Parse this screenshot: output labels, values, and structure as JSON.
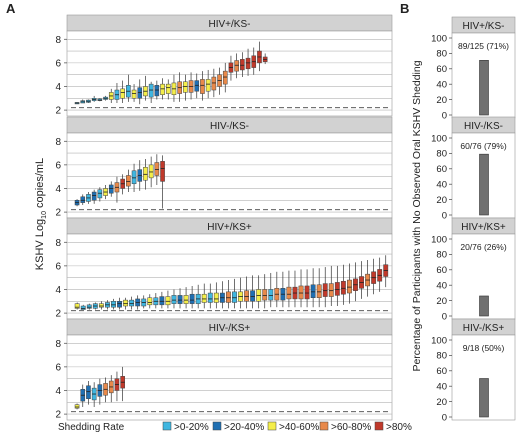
{
  "figure": {
    "panel_a_label": "A",
    "panel_b_label": "B",
    "y_label_a": "KSHV Log",
    "y_label_a_sub": "10",
    "y_label_a_tail": " copies/mL",
    "y_label_b": "Percentage of Participants with No Observed Oral KSHV Shedding",
    "legend_title": "Shedding Rate",
    "legend": [
      {
        "label": ">0-20%",
        "color": "#3fb6e0"
      },
      {
        "label": ">20-40%",
        "color": "#1f6fb2"
      },
      {
        "label": ">40-60%",
        "color": "#f4ee4a"
      },
      {
        "label": ">60-80%",
        "color": "#e8894a"
      },
      {
        "label": ">80%",
        "color": "#c0392b"
      }
    ],
    "colors": {
      "header_bg": "#d2d2d2",
      "bar_gray": "#707070",
      "grid": "#b5b5b5",
      "dash": "#444444"
    }
  },
  "chart_data": [
    {
      "type": "box",
      "panel": "A",
      "title": "HIV+/KS-",
      "ylim": [
        1.5,
        8.7
      ],
      "yticks": [
        2,
        4,
        6,
        8
      ],
      "limit_line": 2.2,
      "boxes": [
        {
          "rate": 1,
          "med": 2.6,
          "q1": 2.55,
          "q3": 2.65,
          "lo": 2.55,
          "hi": 2.65
        },
        {
          "rate": 1,
          "med": 2.7,
          "q1": 2.6,
          "q3": 2.8,
          "lo": 2.6,
          "hi": 2.9
        },
        {
          "rate": 1,
          "med": 2.75,
          "q1": 2.65,
          "q3": 2.85,
          "lo": 2.6,
          "hi": 2.9
        },
        {
          "rate": 1,
          "med": 2.9,
          "q1": 2.8,
          "q3": 3.0,
          "lo": 2.7,
          "hi": 3.2
        },
        {
          "rate": 1,
          "med": 2.85,
          "q1": 2.8,
          "q3": 2.95,
          "lo": 2.75,
          "hi": 3.0
        },
        {
          "rate": 1,
          "med": 3.0,
          "q1": 2.9,
          "q3": 3.1,
          "lo": 2.8,
          "hi": 3.2
        },
        {
          "rate": 3,
          "med": 3.2,
          "q1": 2.9,
          "q3": 3.5,
          "lo": 2.6,
          "hi": 3.8
        },
        {
          "rate": 1,
          "med": 3.3,
          "q1": 2.9,
          "q3": 3.7,
          "lo": 2.6,
          "hi": 4.3
        },
        {
          "rate": 3,
          "med": 3.5,
          "q1": 3.0,
          "q3": 3.8,
          "lo": 2.6,
          "hi": 4.5
        },
        {
          "rate": 1,
          "med": 3.6,
          "q1": 3.1,
          "q3": 4.1,
          "lo": 2.7,
          "hi": 5.0
        },
        {
          "rate": 3,
          "med": 3.4,
          "q1": 3.0,
          "q3": 3.7,
          "lo": 2.7,
          "hi": 4.2
        },
        {
          "rate": 2,
          "med": 3.5,
          "q1": 3.0,
          "q3": 3.9,
          "lo": 2.5,
          "hi": 4.6
        },
        {
          "rate": 3,
          "med": 3.6,
          "q1": 3.2,
          "q3": 4.0,
          "lo": 2.8,
          "hi": 4.9
        },
        {
          "rate": 1,
          "med": 3.7,
          "q1": 3.1,
          "q3": 4.2,
          "lo": 2.6,
          "hi": 4.4
        },
        {
          "rate": 2,
          "med": 3.7,
          "q1": 3.2,
          "q3": 4.1,
          "lo": 2.9,
          "hi": 4.5
        },
        {
          "rate": 3,
          "med": 3.8,
          "q1": 3.3,
          "q3": 4.2,
          "lo": 2.9,
          "hi": 4.7
        },
        {
          "rate": 3,
          "med": 3.9,
          "q1": 3.4,
          "q3": 4.2,
          "lo": 2.9,
          "hi": 4.6
        },
        {
          "rate": 3,
          "med": 3.8,
          "q1": 3.3,
          "q3": 4.3,
          "lo": 2.7,
          "hi": 5.0
        },
        {
          "rate": 4,
          "med": 3.9,
          "q1": 3.4,
          "q3": 4.4,
          "lo": 2.7,
          "hi": 5.2
        },
        {
          "rate": 3,
          "med": 4.0,
          "q1": 3.5,
          "q3": 4.4,
          "lo": 2.8,
          "hi": 5.0
        },
        {
          "rate": 4,
          "med": 4.0,
          "q1": 3.5,
          "q3": 4.5,
          "lo": 2.9,
          "hi": 5.2
        },
        {
          "rate": 2,
          "med": 4.1,
          "q1": 3.6,
          "q3": 4.5,
          "lo": 3.0,
          "hi": 5.1
        },
        {
          "rate": 4,
          "med": 4.1,
          "q1": 3.4,
          "q3": 4.6,
          "lo": 2.8,
          "hi": 5.3
        },
        {
          "rate": 3,
          "med": 4.2,
          "q1": 3.6,
          "q3": 4.6,
          "lo": 3.0,
          "hi": 5.4
        },
        {
          "rate": 4,
          "med": 4.3,
          "q1": 3.7,
          "q3": 4.8,
          "lo": 3.1,
          "hi": 5.5
        },
        {
          "rate": 4,
          "med": 4.5,
          "q1": 4.0,
          "q3": 5.0,
          "lo": 3.3,
          "hi": 5.6
        },
        {
          "rate": 4,
          "med": 4.8,
          "q1": 4.2,
          "q3": 5.3,
          "lo": 3.5,
          "hi": 6.0
        },
        {
          "rate": 5,
          "med": 5.6,
          "q1": 5.2,
          "q3": 6.0,
          "lo": 4.5,
          "hi": 6.6
        },
        {
          "rate": 4,
          "med": 5.8,
          "q1": 5.3,
          "q3": 6.2,
          "lo": 4.7,
          "hi": 6.8
        },
        {
          "rate": 5,
          "med": 5.8,
          "q1": 5.4,
          "q3": 6.3,
          "lo": 4.8,
          "hi": 6.9
        },
        {
          "rate": 5,
          "med": 6.0,
          "q1": 5.5,
          "q3": 6.4,
          "lo": 4.9,
          "hi": 7.2
        },
        {
          "rate": 5,
          "med": 6.1,
          "q1": 5.6,
          "q3": 6.6,
          "lo": 5.0,
          "hi": 7.3
        },
        {
          "rate": 5,
          "med": 6.5,
          "q1": 6.0,
          "q3": 7.0,
          "lo": 5.3,
          "hi": 7.8
        },
        {
          "rate": 5,
          "med": 6.3,
          "q1": 6.1,
          "q3": 6.5,
          "lo": 5.9,
          "hi": 6.8
        }
      ]
    },
    {
      "type": "box",
      "panel": "A",
      "title": "HIV-/KS-",
      "ylim": [
        1.5,
        8.7
      ],
      "yticks": [
        2,
        4,
        6,
        8
      ],
      "limit_line": 2.2,
      "boxes": [
        {
          "rate": 2,
          "med": 2.8,
          "q1": 2.6,
          "q3": 3.0,
          "lo": 2.5,
          "hi": 3.1
        },
        {
          "rate": 2,
          "med": 3.0,
          "q1": 2.8,
          "q3": 3.3,
          "lo": 2.6,
          "hi": 3.5
        },
        {
          "rate": 1,
          "med": 3.2,
          "q1": 2.9,
          "q3": 3.5,
          "lo": 2.7,
          "hi": 3.7
        },
        {
          "rate": 2,
          "med": 3.4,
          "q1": 3.0,
          "q3": 3.7,
          "lo": 2.7,
          "hi": 3.9
        },
        {
          "rate": 1,
          "med": 3.6,
          "q1": 3.2,
          "q3": 3.9,
          "lo": 2.9,
          "hi": 4.1
        },
        {
          "rate": 3,
          "med": 3.7,
          "q1": 3.4,
          "q3": 4.0,
          "lo": 3.1,
          "hi": 4.3
        },
        {
          "rate": 2,
          "med": 4.0,
          "q1": 3.6,
          "q3": 4.3,
          "lo": 3.3,
          "hi": 4.6
        },
        {
          "rate": 4,
          "med": 4.1,
          "q1": 3.7,
          "q3": 4.5,
          "lo": 2.8,
          "hi": 5.0
        },
        {
          "rate": 5,
          "med": 4.4,
          "q1": 4.0,
          "q3": 4.8,
          "lo": 3.5,
          "hi": 5.2
        },
        {
          "rate": 4,
          "med": 4.6,
          "q1": 4.2,
          "q3": 5.1,
          "lo": 3.7,
          "hi": 5.6
        },
        {
          "rate": 1,
          "med": 4.9,
          "q1": 4.4,
          "q3": 5.5,
          "lo": 3.7,
          "hi": 6.1
        },
        {
          "rate": 2,
          "med": 5.1,
          "q1": 4.6,
          "q3": 5.6,
          "lo": 3.8,
          "hi": 6.4
        },
        {
          "rate": 3,
          "med": 5.2,
          "q1": 4.7,
          "q3": 5.8,
          "lo": 3.9,
          "hi": 6.5
        },
        {
          "rate": 3,
          "med": 5.4,
          "q1": 4.9,
          "q3": 6.0,
          "lo": 4.1,
          "hi": 6.7
        },
        {
          "rate": 4,
          "med": 5.6,
          "q1": 5.1,
          "q3": 6.2,
          "lo": 4.3,
          "hi": 6.9
        },
        {
          "rate": 5,
          "med": 5.7,
          "q1": 4.6,
          "q3": 6.3,
          "lo": 2.3,
          "hi": 6.8
        }
      ]
    },
    {
      "type": "box",
      "panel": "A",
      "title": "HIV+/KS+",
      "ylim": [
        1.5,
        8.7
      ],
      "yticks": [
        2,
        4,
        6,
        8
      ],
      "limit_line": 2.2,
      "boxes": [
        {
          "rate": 3,
          "med": 2.5,
          "q1": 2.4,
          "q3": 2.8,
          "lo": 2.3,
          "hi": 2.9
        },
        {
          "rate": 1,
          "med": 2.4,
          "q1": 2.3,
          "q3": 2.6,
          "lo": 2.3,
          "hi": 2.7
        },
        {
          "rate": 1,
          "med": 2.5,
          "q1": 2.4,
          "q3": 2.7,
          "lo": 2.3,
          "hi": 2.8
        },
        {
          "rate": 1,
          "med": 2.6,
          "q1": 2.4,
          "q3": 2.8,
          "lo": 2.3,
          "hi": 2.9
        },
        {
          "rate": 3,
          "med": 2.6,
          "q1": 2.5,
          "q3": 2.8,
          "lo": 2.3,
          "hi": 3.0
        },
        {
          "rate": 1,
          "med": 2.7,
          "q1": 2.5,
          "q3": 2.9,
          "lo": 2.3,
          "hi": 3.1
        },
        {
          "rate": 1,
          "med": 2.7,
          "q1": 2.5,
          "q3": 3.0,
          "lo": 2.3,
          "hi": 3.2
        },
        {
          "rate": 2,
          "med": 2.8,
          "q1": 2.5,
          "q3": 3.0,
          "lo": 2.3,
          "hi": 3.3
        },
        {
          "rate": 3,
          "med": 2.8,
          "q1": 2.6,
          "q3": 3.1,
          "lo": 2.3,
          "hi": 3.3
        },
        {
          "rate": 1,
          "med": 2.8,
          "q1": 2.6,
          "q3": 3.1,
          "lo": 2.3,
          "hi": 3.4
        },
        {
          "rate": 2,
          "med": 2.9,
          "q1": 2.6,
          "q3": 3.2,
          "lo": 2.3,
          "hi": 3.5
        },
        {
          "rate": 1,
          "med": 2.9,
          "q1": 2.6,
          "q3": 3.2,
          "lo": 2.4,
          "hi": 3.5
        },
        {
          "rate": 3,
          "med": 2.9,
          "q1": 2.7,
          "q3": 3.3,
          "lo": 2.4,
          "hi": 3.6
        },
        {
          "rate": 1,
          "med": 3.0,
          "q1": 2.7,
          "q3": 3.3,
          "lo": 2.4,
          "hi": 3.7
        },
        {
          "rate": 2,
          "med": 3.0,
          "q1": 2.7,
          "q3": 3.4,
          "lo": 2.4,
          "hi": 3.8
        },
        {
          "rate": 3,
          "med": 3.0,
          "q1": 2.7,
          "q3": 3.4,
          "lo": 2.4,
          "hi": 3.9
        },
        {
          "rate": 1,
          "med": 3.1,
          "q1": 2.8,
          "q3": 3.5,
          "lo": 2.4,
          "hi": 4.0
        },
        {
          "rate": 2,
          "med": 3.1,
          "q1": 2.8,
          "q3": 3.5,
          "lo": 2.4,
          "hi": 4.1
        },
        {
          "rate": 3,
          "med": 3.1,
          "q1": 2.8,
          "q3": 3.5,
          "lo": 2.4,
          "hi": 4.2
        },
        {
          "rate": 2,
          "med": 3.1,
          "q1": 2.8,
          "q3": 3.6,
          "lo": 2.4,
          "hi": 4.3
        },
        {
          "rate": 1,
          "med": 3.2,
          "q1": 2.8,
          "q3": 3.6,
          "lo": 2.4,
          "hi": 4.4
        },
        {
          "rate": 3,
          "med": 3.2,
          "q1": 2.9,
          "q3": 3.6,
          "lo": 2.4,
          "hi": 4.5
        },
        {
          "rate": 1,
          "med": 3.2,
          "q1": 2.9,
          "q3": 3.7,
          "lo": 2.4,
          "hi": 4.5
        },
        {
          "rate": 3,
          "med": 3.2,
          "q1": 2.9,
          "q3": 3.7,
          "lo": 2.4,
          "hi": 4.6
        },
        {
          "rate": 2,
          "med": 3.3,
          "q1": 2.9,
          "q3": 3.7,
          "lo": 2.4,
          "hi": 4.7
        },
        {
          "rate": 4,
          "med": 3.3,
          "q1": 2.9,
          "q3": 3.8,
          "lo": 2.4,
          "hi": 4.8
        },
        {
          "rate": 1,
          "med": 3.3,
          "q1": 2.9,
          "q3": 3.8,
          "lo": 2.4,
          "hi": 4.9
        },
        {
          "rate": 3,
          "med": 3.4,
          "q1": 3.0,
          "q3": 3.8,
          "lo": 2.4,
          "hi": 5.0
        },
        {
          "rate": 4,
          "med": 3.4,
          "q1": 3.0,
          "q3": 3.9,
          "lo": 2.4,
          "hi": 5.1
        },
        {
          "rate": 2,
          "med": 3.4,
          "q1": 3.0,
          "q3": 3.9,
          "lo": 2.4,
          "hi": 5.2
        },
        {
          "rate": 3,
          "med": 3.5,
          "q1": 3.0,
          "q3": 4.0,
          "lo": 2.4,
          "hi": 5.2
        },
        {
          "rate": 4,
          "med": 3.5,
          "q1": 3.1,
          "q3": 4.0,
          "lo": 2.4,
          "hi": 5.3
        },
        {
          "rate": 1,
          "med": 3.5,
          "q1": 3.1,
          "q3": 4.0,
          "lo": 2.5,
          "hi": 5.4
        },
        {
          "rate": 4,
          "med": 3.6,
          "q1": 3.1,
          "q3": 4.1,
          "lo": 2.5,
          "hi": 5.5
        },
        {
          "rate": 2,
          "med": 3.6,
          "q1": 3.1,
          "q3": 4.1,
          "lo": 2.5,
          "hi": 5.5
        },
        {
          "rate": 4,
          "med": 3.6,
          "q1": 3.2,
          "q3": 4.2,
          "lo": 2.5,
          "hi": 5.6
        },
        {
          "rate": 5,
          "med": 3.7,
          "q1": 3.2,
          "q3": 4.2,
          "lo": 2.5,
          "hi": 5.6
        },
        {
          "rate": 4,
          "med": 3.7,
          "q1": 3.2,
          "q3": 4.3,
          "lo": 2.5,
          "hi": 5.7
        },
        {
          "rate": 5,
          "med": 3.7,
          "q1": 3.2,
          "q3": 4.3,
          "lo": 2.5,
          "hi": 5.7
        },
        {
          "rate": 2,
          "med": 3.8,
          "q1": 3.3,
          "q3": 4.4,
          "lo": 2.5,
          "hi": 5.8
        },
        {
          "rate": 4,
          "med": 3.8,
          "q1": 3.3,
          "q3": 4.4,
          "lo": 2.5,
          "hi": 5.8
        },
        {
          "rate": 5,
          "med": 3.9,
          "q1": 3.4,
          "q3": 4.5,
          "lo": 2.5,
          "hi": 5.9
        },
        {
          "rate": 4,
          "med": 3.9,
          "q1": 3.4,
          "q3": 4.5,
          "lo": 2.6,
          "hi": 6.0
        },
        {
          "rate": 5,
          "med": 4.0,
          "q1": 3.5,
          "q3": 4.6,
          "lo": 2.6,
          "hi": 6.0
        },
        {
          "rate": 5,
          "med": 4.1,
          "q1": 3.6,
          "q3": 4.7,
          "lo": 2.7,
          "hi": 6.1
        },
        {
          "rate": 4,
          "med": 4.2,
          "q1": 3.7,
          "q3": 4.8,
          "lo": 2.8,
          "hi": 6.2
        },
        {
          "rate": 5,
          "med": 4.4,
          "q1": 3.9,
          "q3": 4.9,
          "lo": 3.0,
          "hi": 6.3
        },
        {
          "rate": 5,
          "med": 4.6,
          "q1": 4.1,
          "q3": 5.1,
          "lo": 3.2,
          "hi": 6.4
        },
        {
          "rate": 4,
          "med": 4.8,
          "q1": 4.3,
          "q3": 5.3,
          "lo": 3.4,
          "hi": 6.5
        },
        {
          "rate": 5,
          "med": 5.0,
          "q1": 4.5,
          "q3": 5.5,
          "lo": 3.6,
          "hi": 6.6
        },
        {
          "rate": 5,
          "med": 5.2,
          "q1": 4.7,
          "q3": 5.7,
          "lo": 3.8,
          "hi": 6.7
        },
        {
          "rate": 5,
          "med": 5.6,
          "q1": 5.1,
          "q3": 6.1,
          "lo": 4.2,
          "hi": 6.9
        }
      ]
    },
    {
      "type": "box",
      "panel": "A",
      "title": "HIV-/KS+",
      "ylim": [
        1.5,
        8.7
      ],
      "yticks": [
        2,
        4,
        6,
        8
      ],
      "limit_line": 2.2,
      "boxes": [
        {
          "rate": 3,
          "med": 2.6,
          "q1": 2.5,
          "q3": 2.8,
          "lo": 2.4,
          "hi": 2.9
        },
        {
          "rate": 2,
          "med": 3.6,
          "q1": 3.1,
          "q3": 4.1,
          "lo": 2.6,
          "hi": 4.5
        },
        {
          "rate": 2,
          "med": 3.9,
          "q1": 3.3,
          "q3": 4.4,
          "lo": 2.8,
          "hi": 4.8
        },
        {
          "rate": 1,
          "med": 3.7,
          "q1": 3.2,
          "q3": 4.2,
          "lo": 2.6,
          "hi": 4.7
        },
        {
          "rate": 2,
          "med": 4.0,
          "q1": 3.5,
          "q3": 4.5,
          "lo": 2.8,
          "hi": 5.0
        },
        {
          "rate": 4,
          "med": 4.1,
          "q1": 3.6,
          "q3": 4.6,
          "lo": 3.0,
          "hi": 5.1
        },
        {
          "rate": 4,
          "med": 4.3,
          "q1": 3.8,
          "q3": 4.8,
          "lo": 3.0,
          "hi": 5.3
        },
        {
          "rate": 5,
          "med": 4.5,
          "q1": 4.0,
          "q3": 5.0,
          "lo": 3.1,
          "hi": 5.6
        },
        {
          "rate": 5,
          "med": 4.7,
          "q1": 4.2,
          "q3": 5.2,
          "lo": 3.1,
          "hi": 6.0
        }
      ]
    },
    {
      "type": "bar",
      "panel": "B",
      "title": "HIV+/KS-",
      "ylim": [
        0,
        100
      ],
      "yticks": [
        0,
        20,
        40,
        60,
        80,
        100
      ],
      "values": [
        71
      ],
      "annotation": "89/125 (71%)"
    },
    {
      "type": "bar",
      "panel": "B",
      "title": "HIV-/KS-",
      "ylim": [
        0,
        100
      ],
      "yticks": [
        0,
        20,
        40,
        60,
        80,
        100
      ],
      "values": [
        79
      ],
      "annotation": "60/76 (79%)"
    },
    {
      "type": "bar",
      "panel": "B",
      "title": "HIV+/KS+",
      "ylim": [
        0,
        100
      ],
      "yticks": [
        0,
        20,
        40,
        60,
        80,
        100
      ],
      "values": [
        26
      ],
      "annotation": "20/76 (26%)"
    },
    {
      "type": "bar",
      "panel": "B",
      "title": "HIV-/KS+",
      "ylim": [
        0,
        100
      ],
      "yticks": [
        0,
        20,
        40,
        60,
        80,
        100
      ],
      "values": [
        50
      ],
      "annotation": "9/18 (50%)"
    }
  ]
}
